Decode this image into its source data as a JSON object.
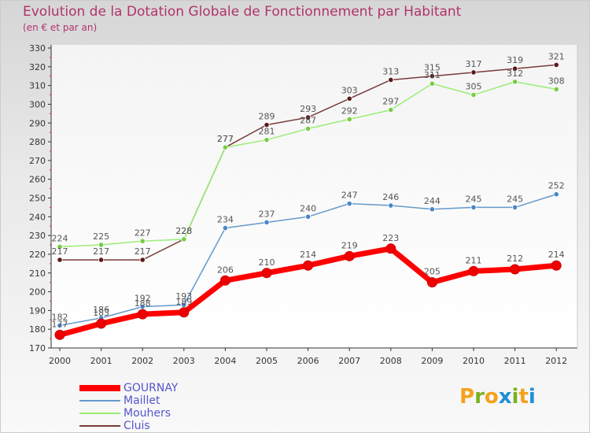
{
  "title": "Evolution de la Dotation Globale de Fonctionnement par Habitant",
  "subtitle": "(en € et par an)",
  "logo": {
    "text": "Proxiti",
    "letters": [
      {
        "ch": "P",
        "color": "#f4a21c"
      },
      {
        "ch": "r",
        "color": "#79b21e"
      },
      {
        "ch": "o",
        "color": "#f4a21c"
      },
      {
        "ch": "x",
        "color": "#1f8fd6"
      },
      {
        "ch": "i",
        "color": "#79b21e"
      },
      {
        "ch": "t",
        "color": "#f4a21c"
      },
      {
        "ch": "i",
        "color": "#1f8fd6"
      }
    ]
  },
  "chart_data": {
    "type": "line",
    "title": "Evolution de la Dotation Globale de Fonctionnement par Habitant",
    "ylabel": "(en € et par an)",
    "xlabel": "",
    "x": [
      "2000",
      "2001",
      "2002",
      "2003",
      "2004",
      "2005",
      "2006",
      "2007",
      "2008",
      "2009",
      "2010",
      "2011",
      "2012"
    ],
    "ylim": [
      170,
      330
    ],
    "yticks": [
      170,
      180,
      190,
      200,
      210,
      220,
      230,
      240,
      250,
      260,
      270,
      280,
      290,
      300,
      310,
      320,
      330
    ],
    "grid": false,
    "legend_position": "bottom-left",
    "series": [
      {
        "name": "GOURNAY",
        "color": "#ff0000",
        "marker_color": "#ee0000",
        "width": "thick",
        "values": [
          177,
          183,
          188,
          189,
          206,
          210,
          214,
          219,
          223,
          205,
          211,
          212,
          214
        ]
      },
      {
        "name": "Maillet",
        "color": "#6699cc",
        "marker_color": "#4a86c8",
        "width": "thin",
        "values": [
          182,
          186,
          192,
          193,
          234,
          237,
          240,
          247,
          246,
          244,
          245,
          245,
          252
        ]
      },
      {
        "name": "Mouhers",
        "color": "#99ee77",
        "marker_color": "#77cc44",
        "width": "thin",
        "values": [
          224,
          225,
          227,
          228,
          277,
          281,
          287,
          292,
          297,
          311,
          305,
          312,
          308
        ]
      },
      {
        "name": "Cluis",
        "color": "#7a3a3a",
        "marker_color": "#5a1a1a",
        "width": "thin",
        "values": [
          217,
          217,
          217,
          228,
          277,
          289,
          293,
          303,
          313,
          315,
          317,
          319,
          321
        ]
      }
    ]
  }
}
